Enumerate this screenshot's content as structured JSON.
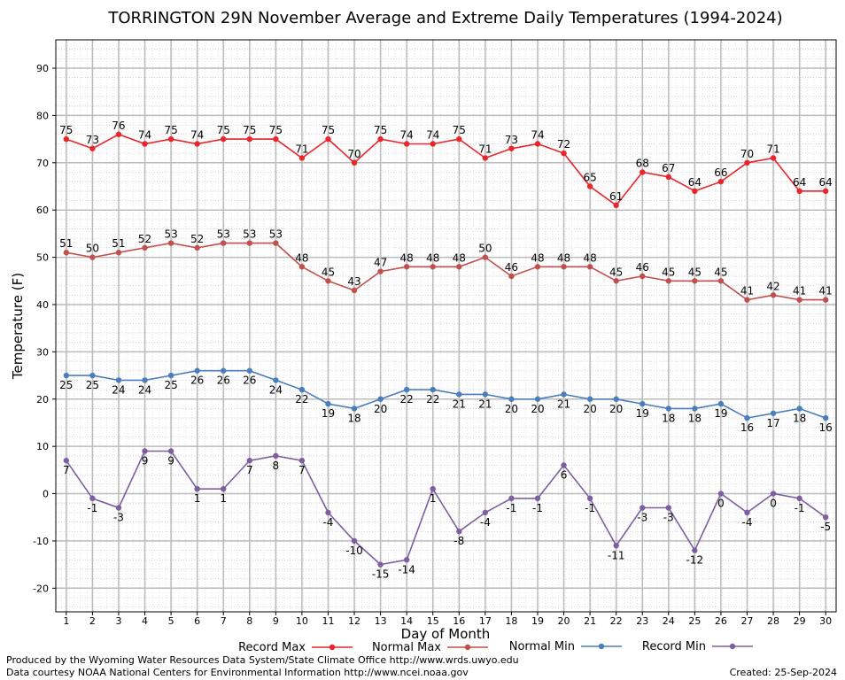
{
  "chart_data": {
    "type": "line",
    "title": "TORRINGTON 29N November Average and Extreme Daily Temperatures (1994-2024)",
    "xlabel": "Day of Month",
    "ylabel": "Temperature (F)",
    "x": [
      1,
      2,
      3,
      4,
      5,
      6,
      7,
      8,
      9,
      10,
      11,
      12,
      13,
      14,
      15,
      16,
      17,
      18,
      19,
      20,
      21,
      22,
      23,
      24,
      25,
      26,
      27,
      28,
      29,
      30
    ],
    "xlim": [
      0.6,
      30.4
    ],
    "ylim": [
      -25,
      96
    ],
    "yticks": [
      -20,
      -10,
      0,
      10,
      20,
      30,
      40,
      50,
      60,
      70,
      80,
      90
    ],
    "grid": true,
    "legend_position": "bottom",
    "series": [
      {
        "name": "Record Max",
        "color": "#e8262b",
        "label_pos": "above",
        "values": [
          75,
          73,
          76,
          74,
          75,
          74,
          75,
          75,
          75,
          71,
          75,
          70,
          75,
          74,
          74,
          75,
          71,
          73,
          74,
          72,
          65,
          61,
          68,
          67,
          64,
          66,
          70,
          71,
          64,
          64
        ]
      },
      {
        "name": "Normal Max",
        "color": "#c0504d",
        "label_pos": "above",
        "values": [
          51,
          50,
          51,
          52,
          53,
          52,
          53,
          53,
          53,
          48,
          45,
          43,
          47,
          48,
          48,
          48,
          50,
          46,
          48,
          48,
          48,
          45,
          46,
          45,
          45,
          45,
          41,
          42,
          41,
          41
        ]
      },
      {
        "name": "Normal Min",
        "color": "#4a7ebb",
        "label_pos": "below",
        "values": [
          25,
          25,
          24,
          24,
          25,
          26,
          26,
          26,
          24,
          22,
          19,
          18,
          20,
          22,
          22,
          21,
          21,
          20,
          20,
          21,
          20,
          20,
          19,
          18,
          18,
          19,
          16,
          17,
          18,
          16
        ]
      },
      {
        "name": "Record Min",
        "color": "#7d5fa0",
        "label_pos": "below",
        "values": [
          7,
          -1,
          -3,
          9,
          9,
          1,
          1,
          7,
          8,
          7,
          -4,
          -10,
          -15,
          -14,
          1,
          -8,
          -4,
          -1,
          -1,
          6,
          -1,
          -11,
          -3,
          -3,
          -12,
          0,
          -4,
          0,
          -1,
          -5
        ]
      }
    ]
  },
  "footer": {
    "produced_by": "Produced by the Wyoming Water Resources Data System/State Climate Office http://www.wrds.uwyo.edu",
    "data_courtesy": "Data courtesy NOAA National Centers for Environmental Information http://www.ncei.noaa.gov",
    "created": "Created: 25-Sep-2024"
  }
}
